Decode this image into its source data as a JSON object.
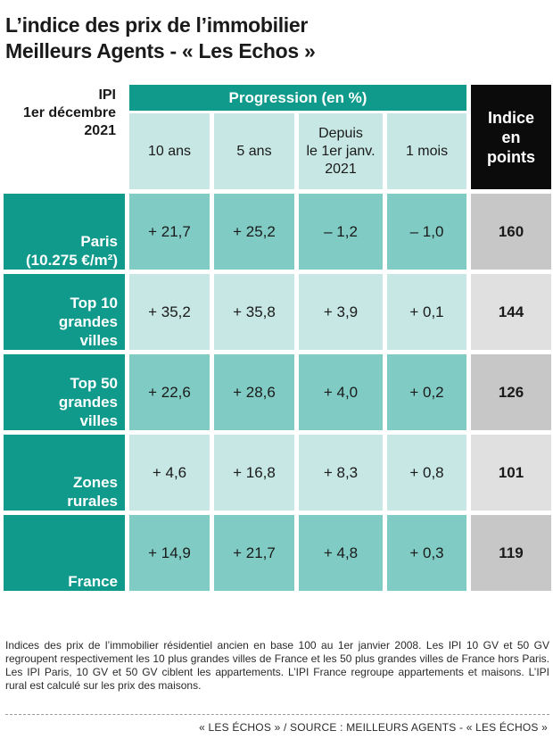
{
  "title": {
    "line1": "L’indice des prix de l’immobilier",
    "line2": "Meilleurs Agents - « Les Echos »"
  },
  "header": {
    "ipi_line1": "IPI",
    "ipi_line2": "1er décembre",
    "ipi_line3": "2021",
    "progression": "Progression (en %)",
    "col_10ans": "10 ans",
    "col_5ans": "5 ans",
    "col_depuis_l1": "Depuis",
    "col_depuis_l2": "le 1er janv.",
    "col_depuis_l3": "2021",
    "col_1mois": "1 mois",
    "indice_l1": "Indice",
    "indice_l2": "en",
    "indice_l3": "points"
  },
  "chart_data": {
    "type": "table",
    "title": "L’indice des prix de l’immobilier Meilleurs Agents - « Les Echos »",
    "columns": [
      "10 ans",
      "5 ans",
      "Depuis le 1er janv. 2021",
      "1 mois",
      "Indice en points"
    ],
    "rows": [
      {
        "label_lines": [
          "Paris",
          "(10.275 €/m²)"
        ],
        "values": [
          "+ 21,7",
          "+ 25,2",
          "– 1,2",
          "– 1,0"
        ],
        "indice": "160"
      },
      {
        "label_lines": [
          "Top 10",
          "grandes",
          "villes"
        ],
        "values": [
          "+ 35,2",
          "+ 35,8",
          "+ 3,9",
          "+ 0,1"
        ],
        "indice": "144"
      },
      {
        "label_lines": [
          "Top 50",
          "grandes",
          "villes"
        ],
        "values": [
          "+ 22,6",
          "+ 28,6",
          "+ 4,0",
          "+ 0,2"
        ],
        "indice": "126"
      },
      {
        "label_lines": [
          "Zones",
          "rurales"
        ],
        "values": [
          "+ 4,6",
          "+ 16,8",
          "+ 8,3",
          "+ 0,8"
        ],
        "indice": "101"
      },
      {
        "label_lines": [
          "France"
        ],
        "values": [
          "+ 14,9",
          "+ 21,7",
          "+ 4,8",
          "+ 0,3"
        ],
        "indice": "119"
      }
    ]
  },
  "footnote": "Indices des prix de l’immobilier résidentiel ancien en base 100 au 1er janvier 2008. Les IPI 10 GV et 50 GV regroupent respectivement les 10 plus grandes villes de France et les 50 plus grandes villes de France hors Paris. Les IPI Paris, 10 GV et 50 GV ciblent les appartements. L’IPI France regroupe appartements et maisons. L’IPI rural est calculé sur les prix des maisons.",
  "source": "« LES ÉCHOS » / SOURCE : MEILLEURS AGENTS - « LES ÉCHOS »",
  "colors": {
    "teal": "#0f9a8c",
    "light_teal_1": "#80cbc4",
    "light_teal_2": "#c6e7e3",
    "grey_1": "#c7c7c7",
    "grey_2": "#e0e0e0",
    "black": "#0b0b0b"
  }
}
